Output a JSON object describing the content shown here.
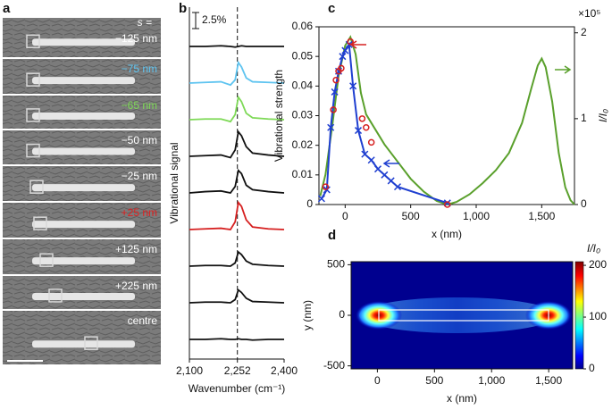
{
  "panel_labels": [
    "a",
    "b",
    "c",
    "d"
  ],
  "sem_panel": {
    "header": "s =",
    "rows": [
      {
        "label": "−125 nm",
        "color": "#ffffff"
      },
      {
        "label": "−75 nm",
        "color": "#5fc4f0"
      },
      {
        "label": "−65 nm",
        "color": "#7ed957"
      },
      {
        "label": "−50 nm",
        "color": "#ffffff"
      },
      {
        "label": "−25 nm",
        "color": "#ffffff"
      },
      {
        "label": "+25 nm",
        "color": "#e02020"
      },
      {
        "label": "+125 nm",
        "color": "#ffffff"
      },
      {
        "label": "+225 nm",
        "color": "#ffffff"
      },
      {
        "label": "centre",
        "color": "#ffffff"
      }
    ]
  },
  "chart_data": [
    {
      "type": "traces",
      "xlabel": "Wavenumber (cm⁻¹)",
      "ylabel": "Vibrational signal",
      "xlim": [
        2100,
        2400
      ],
      "xticks": [
        {
          "value": 2100,
          "label": "2,100"
        },
        {
          "value": 2252,
          "label": "2,252"
        },
        {
          "value": 2400,
          "label": "2,400"
        }
      ],
      "vline": 2252,
      "scale_bar": {
        "value": 2.5,
        "label": "2.5%"
      },
      "x": [
        2100,
        2150,
        2200,
        2230,
        2245,
        2255,
        2265,
        2280,
        2300,
        2350,
        2400
      ],
      "series": [
        {
          "color": "#111111",
          "values": [
            0,
            0,
            0.1,
            0,
            -0.1,
            0,
            0.1,
            0,
            0,
            0,
            0
          ]
        },
        {
          "color": "#5fc4f0",
          "values": [
            0,
            0.1,
            0.2,
            -0.3,
            0.5,
            3.2,
            2.5,
            0.8,
            0.2,
            0.1,
            0
          ]
        },
        {
          "color": "#7ed957",
          "values": [
            0,
            0.1,
            0.1,
            -0.3,
            0.8,
            3.5,
            2.8,
            1.0,
            0.3,
            0.1,
            0
          ]
        },
        {
          "color": "#111111",
          "values": [
            0,
            0.1,
            0.2,
            -0.2,
            1.0,
            3.8,
            3.2,
            1.5,
            0.5,
            0.2,
            0
          ]
        },
        {
          "color": "#111111",
          "values": [
            0,
            0.2,
            0.3,
            0,
            1.0,
            3.5,
            3.0,
            1.2,
            0.5,
            0.2,
            0
          ]
        },
        {
          "color": "#d62020",
          "values": [
            0,
            0.1,
            0.2,
            0,
            1.2,
            4.2,
            3.6,
            1.5,
            0.4,
            0.1,
            0
          ]
        },
        {
          "color": "#111111",
          "values": [
            0,
            0.1,
            0.1,
            0,
            0.5,
            2.2,
            1.8,
            0.8,
            0.3,
            0.1,
            0
          ]
        },
        {
          "color": "#111111",
          "values": [
            0,
            0.1,
            0.1,
            0,
            0.5,
            2.0,
            1.6,
            0.7,
            0.2,
            0.1,
            0
          ]
        },
        {
          "color": "#111111",
          "values": [
            0,
            0,
            0.1,
            0,
            0,
            0.1,
            0,
            0,
            -0.1,
            0,
            0
          ]
        }
      ]
    },
    {
      "type": "line",
      "xlabel": "x (nm)",
      "ylabel": "Vibrational strength",
      "y2label": "I/I₀",
      "y2unit": "×10⁵",
      "xlim": [
        -200,
        1750
      ],
      "ylim": [
        0,
        0.06
      ],
      "y2lim": [
        0,
        2.07
      ],
      "xticks": [
        0,
        500,
        {
          "value": 1000,
          "label": "1,000"
        },
        {
          "value": 1500,
          "label": "1,500"
        }
      ],
      "yticks": [
        0,
        0.01,
        0.02,
        0.03,
        0.04,
        0.05,
        0.06
      ],
      "y2ticks": [
        0,
        1,
        2
      ],
      "series": [
        {
          "color": "#5aa02c",
          "axis": "y2",
          "marker": "none",
          "line": true,
          "x": [
            -190,
            -150,
            -100,
            -50,
            0,
            40,
            80,
            120,
            160,
            200,
            300,
            400,
            500,
            600,
            700,
            780,
            850,
            950,
            1050,
            1150,
            1250,
            1350,
            1420,
            1470,
            1500,
            1530,
            1580,
            1630,
            1680,
            1720,
            1750
          ],
          "values": [
            0.1,
            0.35,
            0.9,
            1.5,
            1.85,
            1.95,
            1.75,
            1.3,
            1.05,
            0.95,
            0.7,
            0.5,
            0.3,
            0.15,
            0.04,
            0,
            0.03,
            0.12,
            0.25,
            0.4,
            0.6,
            0.95,
            1.35,
            1.62,
            1.7,
            1.6,
            1.2,
            0.6,
            0.2,
            0.05,
            0
          ]
        },
        {
          "color": "#1f3fd0",
          "axis": "y",
          "marker": "x",
          "line": true,
          "x": [
            -180,
            -140,
            -110,
            -80,
            -50,
            -20,
            0,
            30,
            60,
            100,
            150,
            200,
            250,
            300,
            350,
            400,
            780
          ],
          "values": [
            0.002,
            0.005,
            0.026,
            0.038,
            0.045,
            0.05,
            0.052,
            0.054,
            0.04,
            0.025,
            0.017,
            0.015,
            0.012,
            0.01,
            0.008,
            0.006,
            0.0005
          ]
        },
        {
          "color": "#d62020",
          "axis": "y",
          "marker": "o",
          "line": false,
          "x": [
            -150,
            -90,
            -70,
            -50,
            -30,
            40,
            130,
            160,
            200,
            780
          ],
          "values": [
            0.006,
            0.032,
            0.042,
            0.045,
            0.046,
            0.055,
            0.029,
            0.026,
            0.021,
            0
          ]
        }
      ]
    },
    {
      "type": "heatmap",
      "xlabel": "x (nm)",
      "ylabel": "y (nm)",
      "colorbar_label": "I/I₀",
      "xlim": [
        -230,
        1710
      ],
      "ylim": [
        -530,
        530
      ],
      "xticks": [
        0,
        500,
        {
          "value": 1000,
          "label": "1,000"
        },
        {
          "value": 1500,
          "label": "1,500"
        }
      ],
      "yticks": [
        500,
        0,
        -500
      ],
      "colorbar_lim": [
        0,
        207
      ],
      "colorbar_ticks": [
        0,
        100,
        200
      ]
    }
  ]
}
